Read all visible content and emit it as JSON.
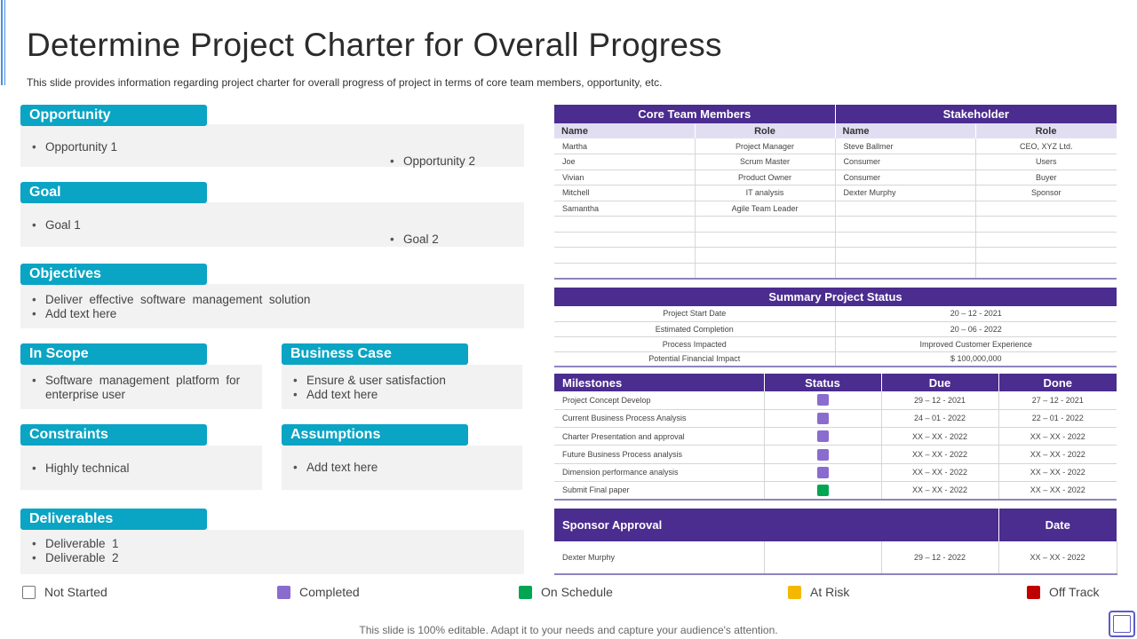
{
  "title": "Determine Project Charter for Overall Progress",
  "subtitle": "This slide provides information regarding project charter for overall progress of project in terms of core team members, opportunity, etc.",
  "sections": {
    "opportunity": {
      "title": "Opportunity",
      "items": [
        "Opportunity 1",
        "Opportunity 2"
      ]
    },
    "goal": {
      "title": "Goal",
      "items": [
        "Goal 1",
        "Goal 2"
      ]
    },
    "objectives": {
      "title": "Objectives",
      "items": [
        "Deliver  effective  software  management  solution",
        "Add text here"
      ]
    },
    "in_scope": {
      "title": "In Scope",
      "items": [
        "Software  management  platform  for",
        "enterprise  user"
      ]
    },
    "business_case": {
      "title": "Business Case",
      "items": [
        "Ensure & user satisfaction",
        "Add text here"
      ]
    },
    "constraints": {
      "title": "Constraints",
      "items": [
        "Highly technical"
      ]
    },
    "assumptions": {
      "title": "Assumptions",
      "items": [
        "Add text here"
      ]
    },
    "deliverables": {
      "title": "Deliverables",
      "items": [
        "Deliverable  1",
        "Deliverable  2"
      ]
    }
  },
  "team_table": {
    "group_core": "Core Team Members",
    "group_stakeholder": "Stakeholder",
    "col_name": "Name",
    "col_role": "Role",
    "rows": [
      [
        "Martha",
        "Project Manager",
        "Steve Ballmer",
        "CEO, XYZ Ltd."
      ],
      [
        "Joe",
        "Scrum Master",
        "Consumer",
        "Users"
      ],
      [
        "Vivian",
        "Product Owner",
        "Consumer",
        "Buyer"
      ],
      [
        "Mitchell",
        "IT analysis",
        "Dexter Murphy",
        "Sponsor"
      ],
      [
        "Samantha",
        "Agile Team  Leader",
        "",
        ""
      ],
      [
        "",
        "",
        "",
        ""
      ],
      [
        "",
        "",
        "",
        ""
      ],
      [
        "",
        "",
        "",
        ""
      ],
      [
        "",
        "",
        "",
        ""
      ]
    ]
  },
  "summary_table": {
    "title": "Summary Project Status",
    "rows": [
      [
        "Project Start Date",
        "20 – 12 - 2021"
      ],
      [
        "Estimated Completion",
        "20 – 06 - 2022"
      ],
      [
        "Process Impacted",
        "Improved Customer Experience"
      ],
      [
        "Potential Financial Impact",
        "$ 100,000,000"
      ]
    ]
  },
  "milestones_table": {
    "col_milestones": "Milestones",
    "col_status": "Status",
    "col_due": "Due",
    "col_done": "Done",
    "rows": [
      {
        "name": "Project Concept Develop",
        "status": "completed",
        "due": "29 – 12 - 2021",
        "done": "27 – 12 - 2021"
      },
      {
        "name": "Current Business Process Analysis",
        "status": "completed",
        "due": "24 – 01 - 2022",
        "done": "22 – 01 - 2022"
      },
      {
        "name": "Charter Presentation and approval",
        "status": "completed",
        "due": "XX – XX  - 2022",
        "done": "XX – XX  - 2022"
      },
      {
        "name": "Future Business Process analysis",
        "status": "completed",
        "due": "XX – XX  - 2022",
        "done": "XX – XX  - 2022"
      },
      {
        "name": "Dimension performance analysis",
        "status": "completed",
        "due": "XX – XX  - 2022",
        "done": "XX – XX  - 2022"
      },
      {
        "name": "Submit Final paper",
        "status": "on_schedule",
        "due": "XX – XX  - 2022",
        "done": "XX – XX  - 2022"
      }
    ]
  },
  "sponsor_table": {
    "col_sponsor": "Sponsor Approval",
    "col_date": "Date",
    "row": [
      "Dexter Murphy",
      "",
      "29 – 12 - 2022",
      "XX – XX  - 2022"
    ]
  },
  "legend": [
    {
      "label": "Not Started",
      "key": "not_started"
    },
    {
      "label": "Completed",
      "key": "completed"
    },
    {
      "label": "On Schedule",
      "key": "on_schedule"
    },
    {
      "label": "At Risk",
      "key": "at_risk"
    },
    {
      "label": "Off Track",
      "key": "off_track"
    }
  ],
  "colors": {
    "accent": "#0aa4c4",
    "header_purple": "#4b2c8f",
    "not_started": "#ffffff",
    "completed": "#8a6ccf",
    "on_schedule": "#00a651",
    "at_risk": "#f5b800",
    "off_track": "#c00000"
  },
  "footer": "This slide is 100% editable. Adapt it to your needs and capture your audience's attention."
}
